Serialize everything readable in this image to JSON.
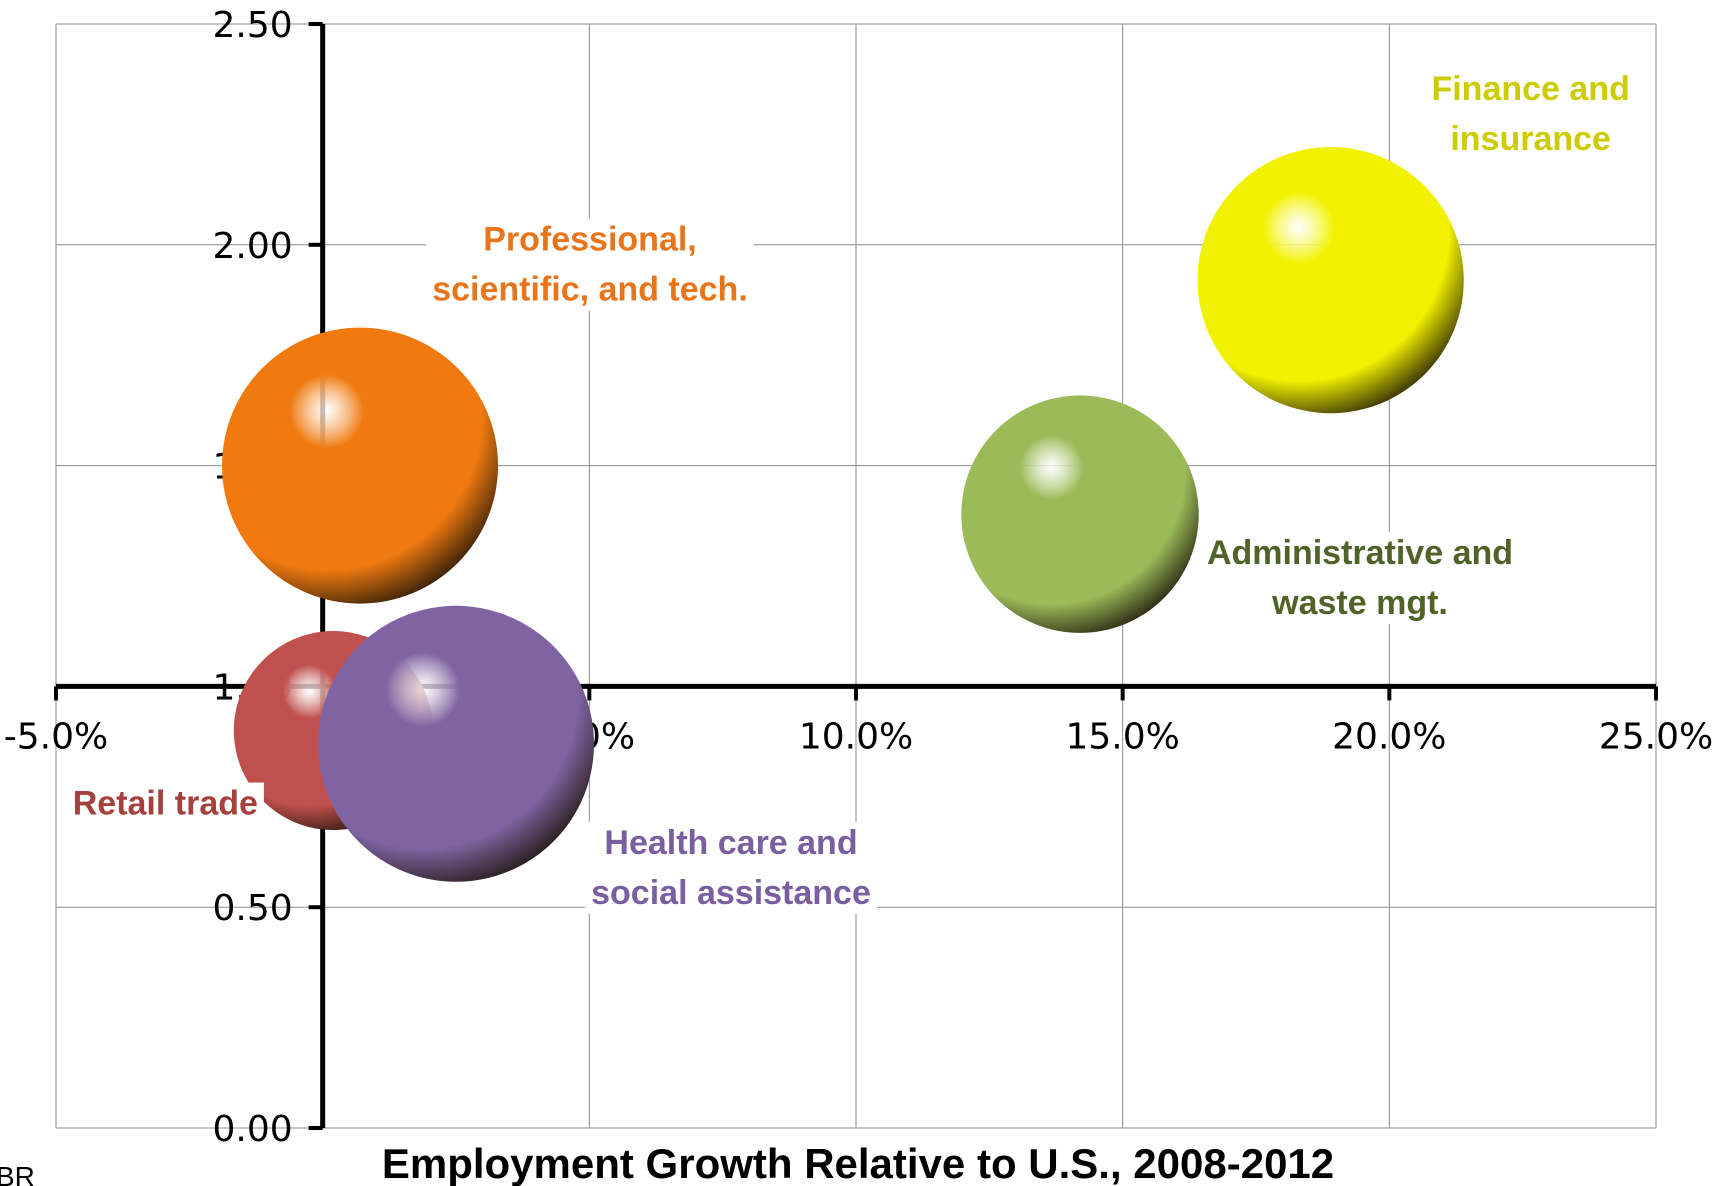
{
  "chart_data": {
    "type": "bubble",
    "xlabel": "Employment Growth Relative to U.S., 2008-2012",
    "ylabel": "",
    "xlim": [
      -0.05,
      0.25
    ],
    "ylim": [
      0,
      2.5
    ],
    "x_ticks": [
      "-5.0%",
      "0.0%",
      "5.0%",
      "10.0%",
      "15.0%",
      "20.0%",
      "25.0%"
    ],
    "y_ticks": [
      "0.00",
      "0.50",
      "1.00",
      "1.50",
      "2.00",
      "2.50"
    ],
    "x_axis_crosses_at_y": 1.0,
    "grid": true,
    "legend": "none",
    "series": [
      {
        "label": [
          "Professional,",
          "scientific, and tech."
        ],
        "x": 0.007,
        "y": 1.5,
        "size": 1.0,
        "color": "#f07a10",
        "label_color": "#e8751a"
      },
      {
        "label": [
          "Finance and",
          "insurance"
        ],
        "x": 0.189,
        "y": 1.92,
        "size": 0.93,
        "color": "#f2f200",
        "label_color": "#cccc00"
      },
      {
        "label": [
          "Administrative and",
          "waste mgt."
        ],
        "x": 0.142,
        "y": 1.39,
        "size": 0.74,
        "color": "#9bbb59",
        "label_color": "#4f6228"
      },
      {
        "label": [
          "Retail trade"
        ],
        "x": 0.002,
        "y": 0.9,
        "size": 0.52,
        "color": "#c0504d",
        "label_color": "#a5403c"
      },
      {
        "label": [
          "Health care and",
          "social assistance"
        ],
        "x": 0.025,
        "y": 0.87,
        "size": 1.0,
        "color": "#8064a2",
        "label_color": "#7a5fa0"
      }
    ]
  },
  "source_text": "BR"
}
